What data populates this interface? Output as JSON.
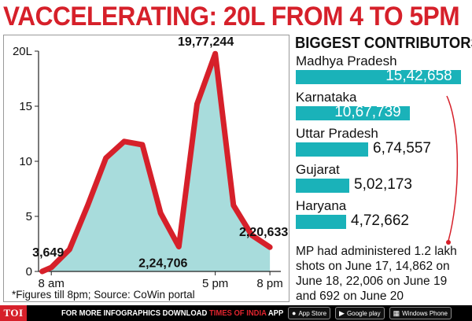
{
  "headline": "VACCELERATING: 20L FROM 4 TO 5PM",
  "chart_data": {
    "type": "area",
    "ylabel": "",
    "xlabel": "",
    "y_ticks": [
      {
        "value": 0,
        "label": "0"
      },
      {
        "value": 5,
        "label": "5"
      },
      {
        "value": 10,
        "label": "10"
      },
      {
        "value": 15,
        "label": "15"
      },
      {
        "value": 20,
        "label": "20L"
      }
    ],
    "x_ticks": [
      {
        "hour": 8,
        "label": "8 am"
      },
      {
        "hour": 17,
        "label": "5 pm"
      },
      {
        "hour": 20,
        "label": "8 pm"
      }
    ],
    "ylim": [
      0,
      20
    ],
    "xlim": [
      7.3,
      20.6
    ],
    "series": [
      {
        "x": [
          7.5,
          8,
          9,
          10,
          11,
          12,
          13,
          14,
          15,
          16,
          17,
          18,
          19,
          20
        ],
        "values": [
          0,
          0.36,
          2.0,
          6.0,
          10.3,
          11.8,
          11.5,
          5.3,
          2.25,
          15.2,
          19.77,
          6.0,
          3.3,
          2.2
        ]
      }
    ],
    "annotations": [
      {
        "text": "3,649",
        "x": 8,
        "y": 0.36
      },
      {
        "text": "19,77,244",
        "x": 17,
        "y": 19.77
      },
      {
        "text": "2,24,706",
        "x": 15,
        "y": 2.25
      },
      {
        "text": "2,20,633",
        "x": 20,
        "y": 2.2
      }
    ],
    "line_color": "#d6202a",
    "fill_color": "#a8dcdc",
    "grid": false
  },
  "source_note": "*Figures till 8pm; Source: CoWin portal",
  "contributors": {
    "heading": "BIGGEST CONTRIBUTORS",
    "bar_color": "#1ab2b9",
    "items": [
      {
        "state": "Madhya Pradesh",
        "value": "15,42,658",
        "amount": 1542658
      },
      {
        "state": "Karnataka",
        "value": "10,67,739",
        "amount": 1067739
      },
      {
        "state": "Uttar Pradesh",
        "value": "6,74,557",
        "amount": 674557
      },
      {
        "state": "Gujarat",
        "value": "5,02,173",
        "amount": 502173
      },
      {
        "state": "Haryana",
        "value": "4,72,662",
        "amount": 472662
      }
    ]
  },
  "mp_note": "MP had administered 1.2 lakh shots on June 17, 14,862 on June 18, 22,006 on June 19 and 692 on June 20",
  "footer": {
    "logo": "TOI",
    "text_prefix": "FOR MORE  INFOGRAPHICS DOWNLOAD ",
    "text_brand": "TIMES OF INDIA",
    "text_suffix": " APP",
    "badges": [
      {
        "label": "App Store",
        "icon": "apple-icon"
      },
      {
        "label": "Google play",
        "icon": "play-icon"
      },
      {
        "label": "Windows Phone",
        "icon": "windows-icon"
      }
    ]
  }
}
